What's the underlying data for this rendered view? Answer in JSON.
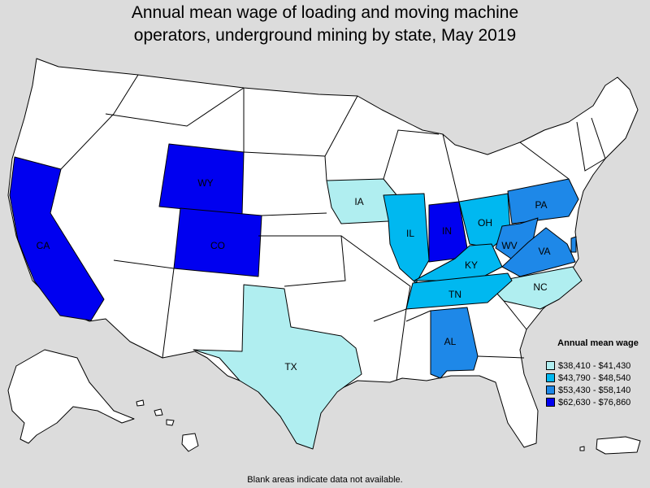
{
  "title_line1": "Annual mean wage of loading and moving machine",
  "title_line2": "operators, underground mining by state, May 2019",
  "colors": {
    "background": "#dcdcdc",
    "no_data": "#ffffff",
    "tier1": "#b0eef0",
    "tier2": "#00b8f0",
    "tier3": "#1e88e8",
    "tier4": "#0000f0",
    "stroke": "#000000"
  },
  "legend": {
    "title": "Annual mean wage",
    "items": [
      {
        "label": "$38,410 - $41,430",
        "tier": "tier1"
      },
      {
        "label": "$43,790 - $48,540",
        "tier": "tier2"
      },
      {
        "label": "$53,430 - $58,140",
        "tier": "tier3"
      },
      {
        "label": "$62,630 - $76,860",
        "tier": "tier4"
      }
    ]
  },
  "states_with_data": [
    {
      "abbr": "CA",
      "tier": "tier4"
    },
    {
      "abbr": "WY",
      "tier": "tier4"
    },
    {
      "abbr": "CO",
      "tier": "tier4"
    },
    {
      "abbr": "IN",
      "tier": "tier4"
    },
    {
      "abbr": "IA",
      "tier": "tier1"
    },
    {
      "abbr": "TX",
      "tier": "tier1"
    },
    {
      "abbr": "NC",
      "tier": "tier1"
    },
    {
      "abbr": "IL",
      "tier": "tier2"
    },
    {
      "abbr": "OH",
      "tier": "tier2"
    },
    {
      "abbr": "KY",
      "tier": "tier2"
    },
    {
      "abbr": "TN",
      "tier": "tier2"
    },
    {
      "abbr": "PA",
      "tier": "tier3"
    },
    {
      "abbr": "WV",
      "tier": "tier3"
    },
    {
      "abbr": "VA",
      "tier": "tier3"
    },
    {
      "abbr": "AL",
      "tier": "tier3"
    }
  ],
  "footnote": "Blank areas indicate data not available."
}
